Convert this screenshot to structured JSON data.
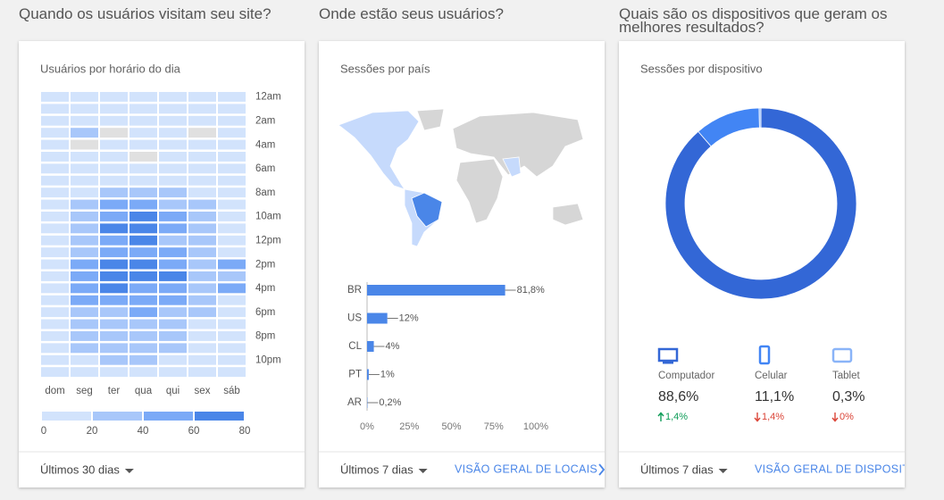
{
  "chart_data": [
    {
      "type": "heatmap",
      "heading": "Quando os usuários visitam seu site?",
      "title": "Usuários por horário do dia",
      "columns": [
        "dom",
        "seg",
        "ter",
        "qua",
        "qui",
        "sex",
        "sáb"
      ],
      "row_labels": [
        "12am",
        null,
        "2am",
        null,
        "4am",
        null,
        "6am",
        null,
        "8am",
        null,
        "10am",
        null,
        "12pm",
        null,
        "2pm",
        null,
        "4pm",
        null,
        "6pm",
        null,
        "8pm",
        null,
        "10pm",
        null
      ],
      "values": [
        [
          10,
          10,
          10,
          10,
          10,
          10,
          10
        ],
        [
          10,
          10,
          10,
          10,
          10,
          10,
          10
        ],
        [
          10,
          10,
          10,
          10,
          10,
          10,
          10
        ],
        [
          10,
          30,
          null,
          10,
          10,
          null,
          10
        ],
        [
          10,
          null,
          10,
          10,
          10,
          10,
          10
        ],
        [
          10,
          10,
          10,
          null,
          10,
          10,
          10
        ],
        [
          10,
          10,
          10,
          10,
          10,
          10,
          10
        ],
        [
          10,
          10,
          10,
          10,
          10,
          10,
          10
        ],
        [
          10,
          10,
          30,
          30,
          30,
          10,
          10
        ],
        [
          10,
          30,
          50,
          50,
          30,
          30,
          10
        ],
        [
          10,
          30,
          50,
          70,
          50,
          30,
          10
        ],
        [
          10,
          30,
          70,
          70,
          50,
          30,
          10
        ],
        [
          10,
          30,
          50,
          70,
          30,
          30,
          10
        ],
        [
          10,
          30,
          50,
          50,
          50,
          30,
          10
        ],
        [
          10,
          50,
          70,
          70,
          50,
          30,
          50
        ],
        [
          10,
          50,
          70,
          70,
          70,
          30,
          30
        ],
        [
          10,
          50,
          70,
          50,
          50,
          30,
          50
        ],
        [
          10,
          50,
          50,
          50,
          50,
          30,
          10
        ],
        [
          10,
          30,
          30,
          50,
          30,
          30,
          10
        ],
        [
          10,
          30,
          30,
          30,
          30,
          10,
          10
        ],
        [
          10,
          30,
          30,
          30,
          30,
          10,
          10
        ],
        [
          10,
          30,
          30,
          30,
          30,
          10,
          10
        ],
        [
          10,
          10,
          30,
          30,
          10,
          10,
          10
        ],
        [
          10,
          10,
          10,
          10,
          10,
          10,
          10
        ]
      ],
      "legend_ticks": [
        0,
        20,
        40,
        60,
        80
      ],
      "legend_colors": [
        "#d2e3fc",
        "#a8c7fa",
        "#7baaf7",
        "#4a86e8"
      ],
      "period": "Últimos 30 dias"
    },
    {
      "type": "bar",
      "heading": "Onde estão seus usuários?",
      "title": "Sessões por país",
      "categories": [
        "BR",
        "US",
        "CL",
        "PT",
        "AR"
      ],
      "values": [
        81.8,
        12,
        4,
        1,
        0.2
      ],
      "value_labels": [
        "81,8%",
        "12%",
        "4%",
        "1%",
        "0,2%"
      ],
      "color": "#4a86e8",
      "orientation": "horizontal",
      "xlim": [
        0,
        100
      ],
      "xticks": [
        {
          "value": 0,
          "label": "0%"
        },
        {
          "value": 25,
          "label": "25%"
        },
        {
          "value": 50,
          "label": "50%"
        },
        {
          "value": 75,
          "label": "75%"
        },
        {
          "value": 100,
          "label": "100%"
        }
      ],
      "period": "Últimos 7 dias",
      "link": "VISÃO GERAL DE LOCAIS"
    },
    {
      "type": "pie",
      "heading": "Quais são os dispositivos que geram os melhores resultados?",
      "title": "Sessões por dispositivo",
      "categories": [
        "Computador",
        "Celular",
        "Tablet"
      ],
      "values": [
        88.6,
        11.1,
        0.3
      ],
      "value_labels": [
        "88,6%",
        "11,1%",
        "0,3%"
      ],
      "colors": [
        "#3367d6",
        "#4285f4",
        "#8ab4f8"
      ],
      "changes": [
        {
          "label": "1,4%",
          "direction": "up"
        },
        {
          "label": "1,4%",
          "direction": "down"
        },
        {
          "label": "0%",
          "direction": "down"
        }
      ],
      "period": "Últimos 7 dias",
      "link": "VISÃO GERAL DE DISPOSITIVOS"
    }
  ]
}
